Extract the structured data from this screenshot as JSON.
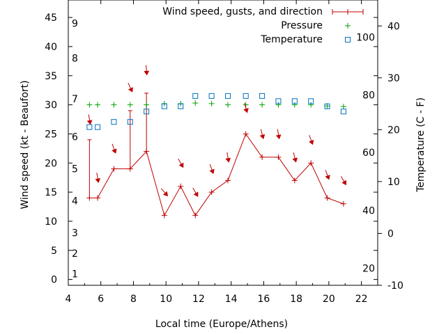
{
  "chart_data": {
    "type": "line",
    "xlabel": "Local time (Europe/Athens)",
    "ylabel": "Wind speed (kt - Beaufort)",
    "y2label": "Temperature (C - F)",
    "xlim": [
      4,
      23
    ],
    "ylim": [
      -1,
      48
    ],
    "y2lim": [
      -10,
      45
    ],
    "xticks": [
      4,
      6,
      8,
      10,
      12,
      14,
      16,
      18,
      20,
      22
    ],
    "yticks": [
      0,
      5,
      10,
      15,
      20,
      25,
      30,
      35,
      40,
      45
    ],
    "y2ticks": [
      -10,
      0,
      10,
      20,
      30,
      40
    ],
    "beaufort_labels": [
      {
        "label": "1",
        "y": 1
      },
      {
        "label": "2",
        "y": 4.5
      },
      {
        "label": "3",
        "y": 8
      },
      {
        "label": "4",
        "y": 13.5
      },
      {
        "label": "5",
        "y": 19
      },
      {
        "label": "6",
        "y": 24.5
      },
      {
        "label": "7",
        "y": 31
      },
      {
        "label": "8",
        "y": 38
      },
      {
        "label": "9",
        "y": 44
      }
    ],
    "fahrenheit_labels": [
      {
        "label": "20",
        "celsius": -6.7
      },
      {
        "label": "40",
        "celsius": 4.4
      },
      {
        "label": "60",
        "celsius": 15.6
      },
      {
        "label": "80",
        "celsius": 26.7
      },
      {
        "label": "100",
        "celsius": 37.8
      }
    ],
    "legend": [
      {
        "label": "Wind speed, gusts, and direction",
        "symbol": "errorbar",
        "color": "#c00000"
      },
      {
        "label": "Pressure",
        "symbol": "plus",
        "color": "#00a000"
      },
      {
        "label": "Temperature",
        "symbol": "square",
        "color": "#0070c0"
      }
    ],
    "legend_position": "top-right",
    "series": [
      {
        "name": "Wind speed, gusts, and direction",
        "color": "#c00000",
        "x": [
          5.3,
          5.8,
          6.8,
          7.8,
          8.8,
          9.9,
          10.9,
          11.8,
          12.8,
          13.8,
          14.9,
          15.9,
          16.9,
          17.9,
          18.9,
          19.9,
          20.9
        ],
        "values": [
          14,
          14,
          19,
          19,
          22,
          11,
          16,
          11,
          15,
          17,
          25,
          21,
          21,
          17,
          20,
          14,
          13
        ],
        "gusts": [
          24,
          null,
          null,
          29,
          32,
          null,
          null,
          null,
          null,
          null,
          null,
          null,
          null,
          null,
          null,
          null,
          null
        ],
        "direction_arrows": [
          {
            "x": 5.3,
            "y": 27.5,
            "deg": 170
          },
          {
            "x": 5.8,
            "y": 17.5,
            "deg": 170
          },
          {
            "x": 6.8,
            "y": 22.5,
            "deg": 160
          },
          {
            "x": 7.8,
            "y": 33.0,
            "deg": 155
          },
          {
            "x": 8.8,
            "y": 36.0,
            "deg": 175
          },
          {
            "x": 9.9,
            "y": 15.0,
            "deg": 140
          },
          {
            "x": 10.9,
            "y": 20.0,
            "deg": 150
          },
          {
            "x": 11.8,
            "y": 15.0,
            "deg": 150
          },
          {
            "x": 12.8,
            "y": 19.0,
            "deg": 160
          },
          {
            "x": 13.8,
            "y": 21.0,
            "deg": 170
          },
          {
            "x": 14.9,
            "y": 29.5,
            "deg": 165
          },
          {
            "x": 15.9,
            "y": 25.0,
            "deg": 165
          },
          {
            "x": 16.9,
            "y": 25.0,
            "deg": 170
          },
          {
            "x": 17.9,
            "y": 21.0,
            "deg": 165
          },
          {
            "x": 18.9,
            "y": 24.0,
            "deg": 160
          },
          {
            "x": 19.9,
            "y": 18.0,
            "deg": 160
          },
          {
            "x": 20.9,
            "y": 17.0,
            "deg": 150
          }
        ]
      },
      {
        "name": "Pressure",
        "color": "#00a000",
        "x": [
          5.3,
          5.8,
          6.8,
          7.8,
          8.8,
          9.9,
          10.9,
          11.8,
          12.8,
          13.8,
          14.9,
          15.9,
          16.9,
          17.9,
          18.9,
          19.9,
          20.9
        ],
        "values": [
          30,
          30,
          30,
          30,
          30,
          30.2,
          30.2,
          30.3,
          30.2,
          30,
          30,
          30,
          30,
          30,
          30,
          29.8,
          29.7
        ]
      },
      {
        "name": "Temperature",
        "color": "#0070c0",
        "x": [
          5.3,
          5.8,
          6.8,
          7.8,
          8.8,
          9.9,
          10.9,
          11.8,
          12.8,
          13.8,
          14.9,
          15.9,
          16.9,
          17.9,
          18.9,
          19.9,
          20.9
        ],
        "values": [
          20.5,
          20.5,
          21.5,
          21.5,
          23.5,
          24.5,
          24.5,
          26.5,
          26.5,
          26.5,
          26.5,
          26.5,
          25.5,
          25.5,
          25.5,
          24.5,
          23.5
        ]
      }
    ]
  }
}
